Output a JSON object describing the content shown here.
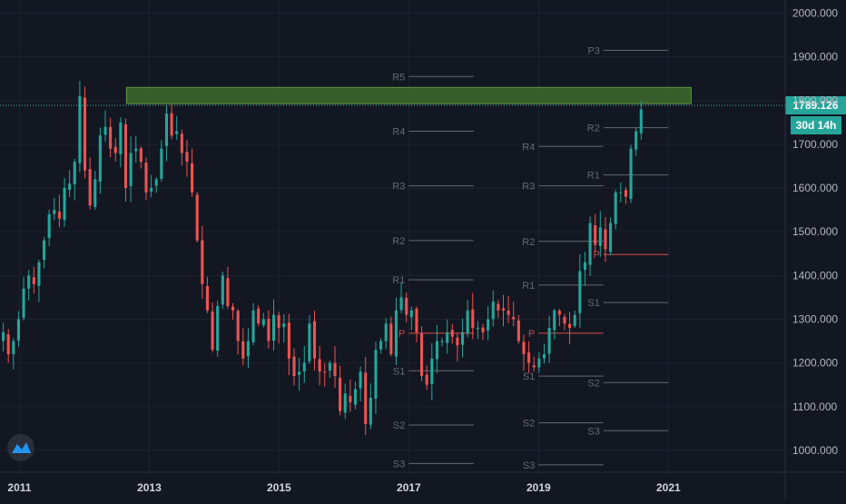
{
  "chart_data": {
    "type": "candlestick",
    "title": "",
    "timeframe": "monthly",
    "y_axis": {
      "range": [
        950,
        2030
      ],
      "ticks": [
        "1000.000",
        "1100.000",
        "1200.000",
        "1300.000",
        "1400.000",
        "1500.000",
        "1600.000",
        "1700.000",
        "1800.000",
        "1900.000",
        "2000.000"
      ]
    },
    "x_axis": {
      "range": [
        2010.7,
        2022.8
      ],
      "ticks": [
        {
          "year": 2011,
          "label": "2011"
        },
        {
          "year": 2013,
          "label": "2013"
        },
        {
          "year": 2015,
          "label": "2015"
        },
        {
          "year": 2017,
          "label": "2017"
        },
        {
          "year": 2019,
          "label": "2019"
        },
        {
          "year": 2021,
          "label": "2021"
        }
      ]
    },
    "grid": true,
    "colors": {
      "background": "#131722",
      "grid": "#1f2331",
      "up": "#26a69a",
      "down": "#ef5350",
      "zone": "#3d6b2b",
      "zone_border": "#5c9a3c",
      "pivot_line": "#a9abb3",
      "pivot_p": "#ef5350",
      "price_line": "#4db6ac",
      "price_tag": "#26a69a"
    },
    "last_price": {
      "value": 1789.126,
      "label": "1789.126",
      "countdown": "30d 14h"
    },
    "resistance_zone": {
      "x_start": 2012.65,
      "x_end": 2021.35,
      "y_low": 1793,
      "y_high": 1830
    },
    "closes": [
      1270,
      1220,
      1250,
      1300,
      1370,
      1400,
      1380,
      1430,
      1480,
      1540,
      1550,
      1530,
      1600,
      1610,
      1660,
      1810,
      1640,
      1560,
      1620,
      1720,
      1740,
      1690,
      1680,
      1750,
      1600,
      1680,
      1690,
      1660,
      1590,
      1600,
      1620,
      1690,
      1770,
      1720,
      1730,
      1680,
      1660,
      1590,
      1480,
      1380,
      1320,
      1230,
      1330,
      1400,
      1330,
      1320,
      1250,
      1210,
      1250,
      1320,
      1290,
      1300,
      1250,
      1310,
      1280,
      1290,
      1210,
      1170,
      1180,
      1200,
      1290,
      1210,
      1180,
      1180,
      1200,
      1170,
      1090,
      1130,
      1110,
      1140,
      1180,
      1060,
      1120,
      1230,
      1250,
      1290,
      1220,
      1320,
      1350,
      1310,
      1320,
      1270,
      1170,
      1150,
      1210,
      1250,
      1250,
      1270,
      1260,
      1240,
      1270,
      1320,
      1280,
      1280,
      1270,
      1300,
      1340,
      1320,
      1320,
      1310,
      1300,
      1250,
      1220,
      1200,
      1190,
      1210,
      1220,
      1280,
      1320,
      1310,
      1290,
      1280,
      1310,
      1410,
      1430,
      1520,
      1470,
      1510,
      1460,
      1520,
      1590,
      1590,
      1580,
      1690,
      1730,
      1780
    ],
    "pivot_periods": [
      {
        "period": "2018",
        "x_start": 2017.0,
        "x_end": 2018.0,
        "levels": [
          {
            "name": "R5",
            "value": 1855
          },
          {
            "name": "R4",
            "value": 1730
          },
          {
            "name": "R3",
            "value": 1605
          },
          {
            "name": "R2",
            "value": 1480
          },
          {
            "name": "R1",
            "value": 1390
          },
          {
            "name": "P",
            "value": 1268
          },
          {
            "name": "S1",
            "value": 1182
          },
          {
            "name": "S2",
            "value": 1058
          },
          {
            "name": "S3",
            "value": 970
          }
        ]
      },
      {
        "period": "2019",
        "x_start": 2019.0,
        "x_end": 2020.0,
        "levels": [
          {
            "name": "R4",
            "value": 1695
          },
          {
            "name": "R3",
            "value": 1605
          },
          {
            "name": "R2",
            "value": 1478
          },
          {
            "name": "R1",
            "value": 1378
          },
          {
            "name": "P",
            "value": 1268
          },
          {
            "name": "S1",
            "value": 1170
          },
          {
            "name": "S2",
            "value": 1063
          },
          {
            "name": "S3",
            "value": 967
          }
        ]
      },
      {
        "period": "2020",
        "x_start": 2020.0,
        "x_end": 2021.0,
        "levels": [
          {
            "name": "P3",
            "value": 1915
          },
          {
            "name": "R2",
            "value": 1738
          },
          {
            "name": "R1",
            "value": 1630
          },
          {
            "name": "P",
            "value": 1448
          },
          {
            "name": "S1",
            "value": 1338
          },
          {
            "name": "S2",
            "value": 1155
          },
          {
            "name": "S3",
            "value": 1045
          }
        ]
      }
    ]
  }
}
